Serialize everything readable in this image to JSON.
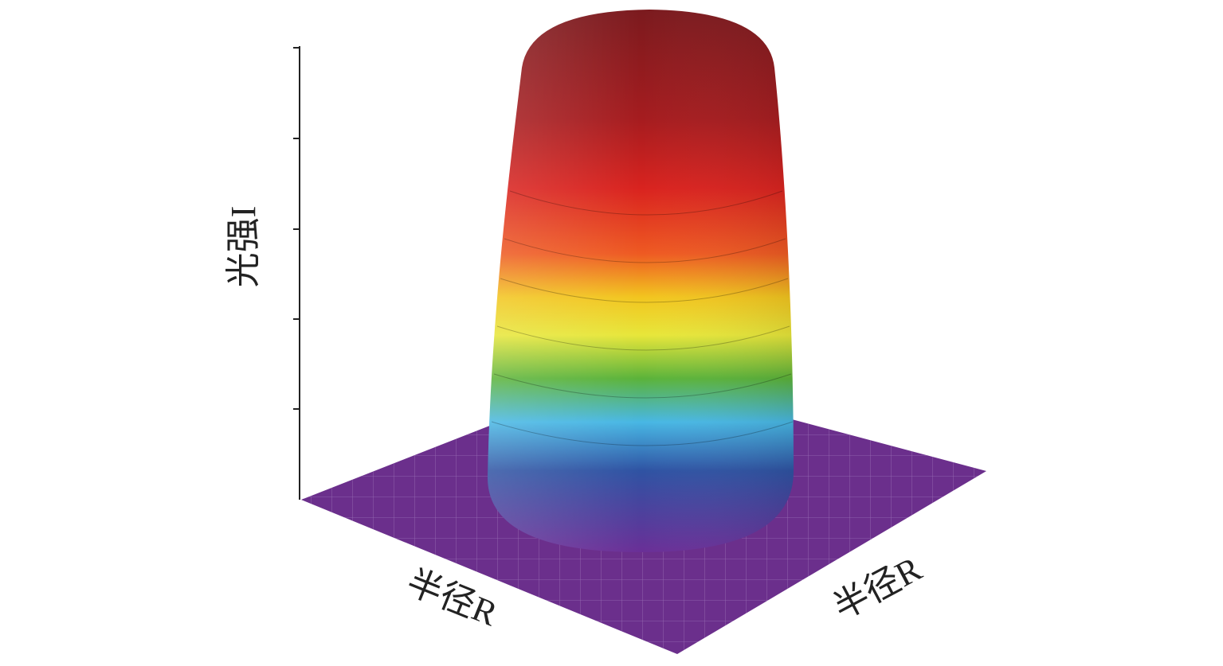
{
  "chart_data": {
    "type": "surface3d",
    "zlabel": "光强I",
    "xlabel": "半径R",
    "ylabel": "半径R"
  }
}
